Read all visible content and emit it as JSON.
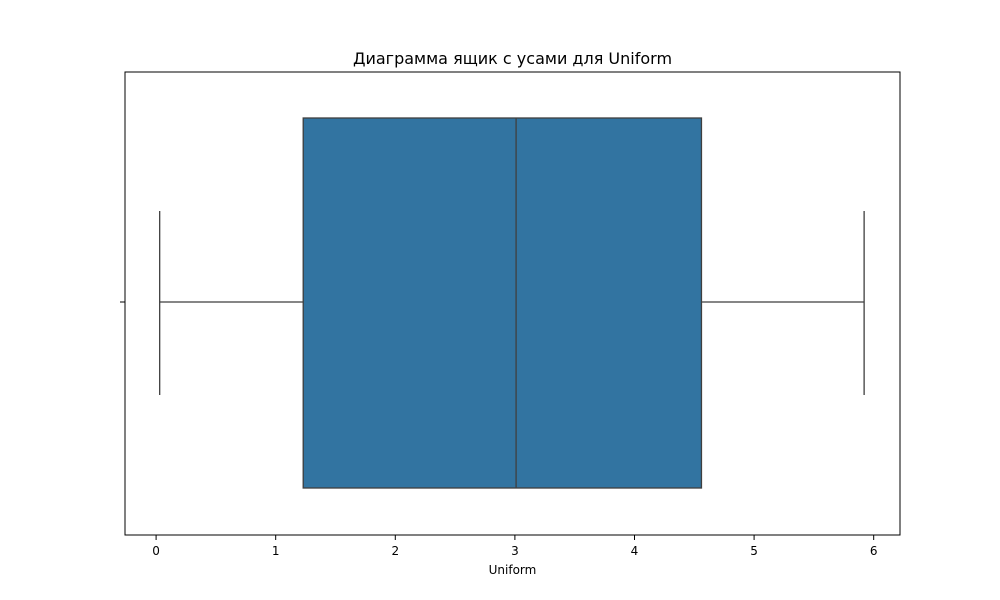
{
  "chart_data": {
    "type": "box",
    "title": "Диаграмма ящик с усами для Uniform",
    "xlabel": "Uniform",
    "ylabel": "",
    "xlim": [
      -0.26,
      6.22
    ],
    "x_ticks": [
      0,
      1,
      2,
      3,
      4,
      5,
      6
    ],
    "orientation": "horizontal",
    "grid": false,
    "series": [
      {
        "whisker_low": 0.03,
        "q1": 1.23,
        "median": 3.01,
        "q3": 4.56,
        "whisker_high": 5.92
      }
    ],
    "colors": {
      "box_fill": "#3274a1",
      "lines": "#3f3f3f",
      "axes": "#000000"
    }
  }
}
